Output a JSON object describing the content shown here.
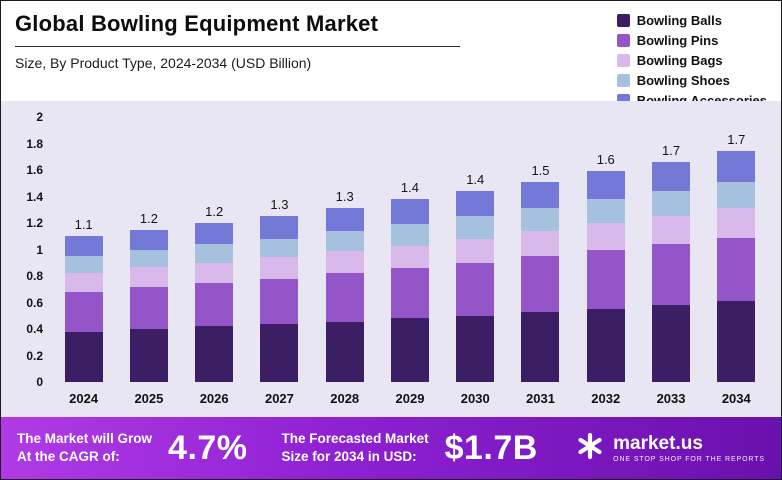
{
  "header": {
    "title": "Global Bowling Equipment Market",
    "subtitle": "Size, By Product Type, 2024-2034 (USD Billion)"
  },
  "chart_data": {
    "type": "bar",
    "stacked": true,
    "title": "Global Bowling Equipment Market Size, By Product Type, 2024-2034 (USD Billion)",
    "categories": [
      "2024",
      "2025",
      "2026",
      "2027",
      "2028",
      "2029",
      "2030",
      "2031",
      "2032",
      "2033",
      "2034"
    ],
    "series": [
      {
        "name": "Bowling Balls",
        "color": "#3b1e63",
        "values": [
          0.38,
          0.4,
          0.42,
          0.44,
          0.45,
          0.48,
          0.5,
          0.53,
          0.55,
          0.58,
          0.61
        ]
      },
      {
        "name": "Bowling Pins",
        "color": "#9455c8",
        "values": [
          0.3,
          0.32,
          0.33,
          0.34,
          0.37,
          0.38,
          0.4,
          0.42,
          0.45,
          0.46,
          0.48
        ]
      },
      {
        "name": "Bowling Bags",
        "color": "#d9b9e9",
        "values": [
          0.14,
          0.15,
          0.15,
          0.16,
          0.17,
          0.17,
          0.18,
          0.19,
          0.2,
          0.21,
          0.22
        ]
      },
      {
        "name": "Bowling Shoes",
        "color": "#a6c1dd",
        "values": [
          0.13,
          0.13,
          0.14,
          0.14,
          0.15,
          0.16,
          0.17,
          0.17,
          0.18,
          0.19,
          0.2
        ]
      },
      {
        "name": "Bowling Accessories",
        "color": "#7478d7",
        "values": [
          0.15,
          0.15,
          0.16,
          0.17,
          0.17,
          0.19,
          0.19,
          0.2,
          0.21,
          0.22,
          0.23
        ]
      }
    ],
    "totals_labels": [
      "1.1",
      "1.2",
      "1.2",
      "1.3",
      "1.3",
      "1.4",
      "1.4",
      "1.5",
      "1.6",
      "1.7",
      "1.7"
    ],
    "xlabel": "",
    "ylabel": "",
    "ylim": [
      0,
      2
    ],
    "yticks": [
      0,
      0.2,
      0.4,
      0.6,
      0.8,
      1,
      1.2,
      1.4,
      1.6,
      1.8,
      2
    ],
    "grid": false,
    "legend_position": "top-right",
    "plot_background": "#e9e6f3"
  },
  "footer": {
    "cagr_label": "The Market will Grow\nAt the CAGR of:",
    "cagr_value": "4.7%",
    "forecast_label": "The Forecasted Market\nSize for 2034 in USD:",
    "forecast_value": "$1.7B",
    "brand": "market.us",
    "brand_tagline": "One Stop Shop For The Reports"
  },
  "colors": {
    "chart_background": "#e9e6f3",
    "banner_gradient_start": "#b13ae6",
    "banner_gradient_end": "#6a10ae",
    "text": "#111111"
  }
}
